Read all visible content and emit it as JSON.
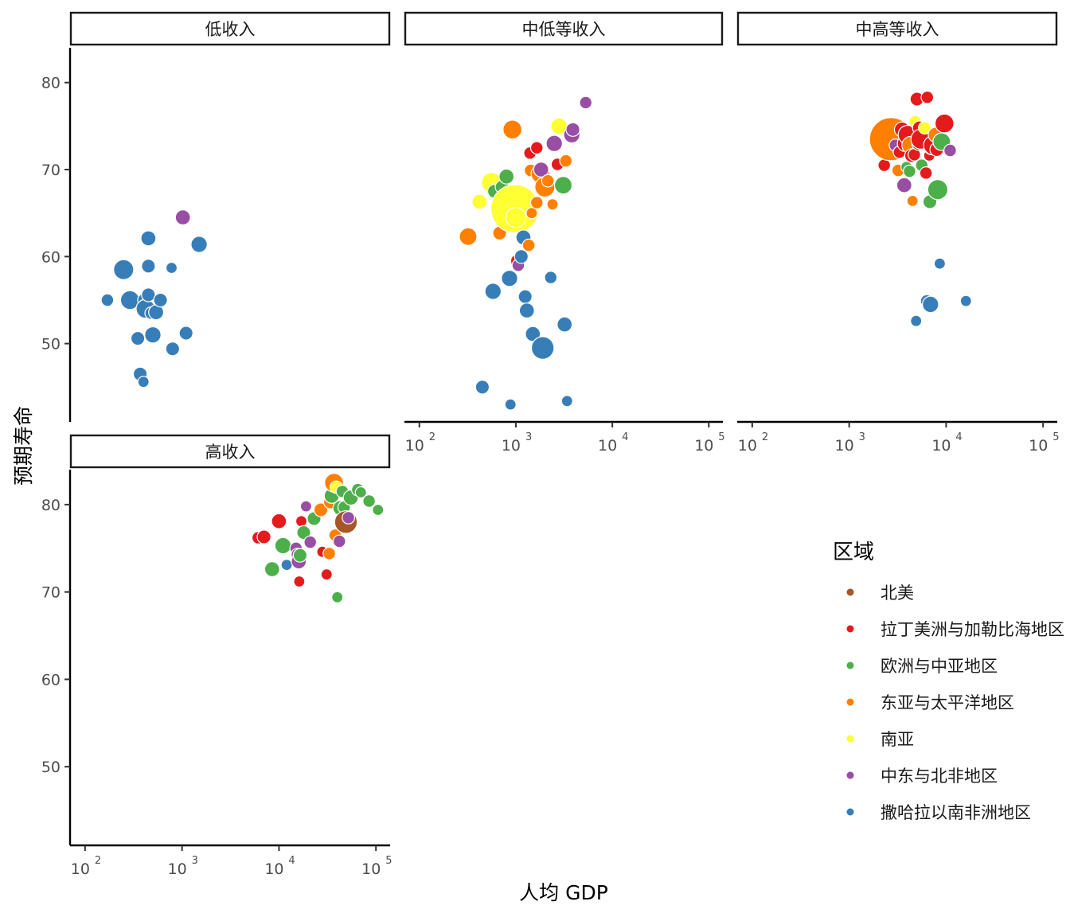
{
  "chart_data": {
    "type": "scatter",
    "subtype": "faceted-bubble",
    "xlabel": "人均 GDP",
    "ylabel": "预期寿命",
    "x_scale": "log10",
    "xlim": [
      70,
      140000
    ],
    "ylim": [
      41,
      84
    ],
    "x_ticks": [
      {
        "value": 100,
        "base": "10",
        "exp": "2"
      },
      {
        "value": 1000,
        "base": "10",
        "exp": "3"
      },
      {
        "value": 10000,
        "base": "10",
        "exp": "4"
      },
      {
        "value": 100000,
        "base": "10",
        "exp": "5"
      }
    ],
    "y_ticks": [
      50,
      60,
      70,
      80
    ],
    "grid": false,
    "legend": {
      "title": "区域",
      "position": "right",
      "entries": [
        {
          "name": "北美",
          "color": "#A65628"
        },
        {
          "name": "拉丁美洲与加勒比海地区",
          "color": "#E41A1C"
        },
        {
          "name": "欧洲与中亚地区",
          "color": "#4DAF4A"
        },
        {
          "name": "东亚与太平洋地区",
          "color": "#FF7F00"
        },
        {
          "name": "南亚",
          "color": "#FFFF33"
        },
        {
          "name": "中东与北非地区",
          "color": "#984EA3"
        },
        {
          "name": "撒哈拉以南非洲地区",
          "color": "#377EB8"
        }
      ]
    },
    "facets": [
      {
        "label": "低收入",
        "points": [
          [
            170,
            55,
            0.6,
            6
          ],
          [
            250,
            58.5,
            1.2,
            6
          ],
          [
            290,
            55,
            1.1,
            6
          ],
          [
            350,
            50.6,
            0.7,
            6
          ],
          [
            370,
            46.5,
            0.7,
            6
          ],
          [
            400,
            45.6,
            0.5,
            6
          ],
          [
            410,
            55,
            0.7,
            6
          ],
          [
            420,
            54,
            1.1,
            6
          ],
          [
            450,
            55.6,
            0.7,
            6
          ],
          [
            450,
            58.9,
            0.7,
            6
          ],
          [
            450,
            62.1,
            0.8,
            6
          ],
          [
            480,
            53.5,
            0.6,
            6
          ],
          [
            500,
            51,
            0.9,
            6
          ],
          [
            540,
            53.6,
            0.8,
            6
          ],
          [
            600,
            55,
            0.7,
            6
          ],
          [
            780,
            58.7,
            0.5,
            6
          ],
          [
            800,
            49.4,
            0.7,
            6
          ],
          [
            1020,
            64.5,
            0.8,
            5
          ],
          [
            1100,
            51.2,
            0.7,
            6
          ],
          [
            1500,
            61.4,
            0.9,
            6
          ]
        ]
      },
      {
        "label": "中低等收入",
        "points": [
          [
            320,
            62.3,
            1.0,
            3
          ],
          [
            420,
            66.3,
            0.8,
            4
          ],
          [
            450,
            45,
            0.7,
            6
          ],
          [
            560,
            68.5,
            1.2,
            4
          ],
          [
            580,
            56,
            0.9,
            6
          ],
          [
            600,
            67.5,
            0.7,
            2
          ],
          [
            680,
            62.7,
            0.7,
            3
          ],
          [
            720,
            68,
            0.7,
            2
          ],
          [
            800,
            69.2,
            0.8,
            2
          ],
          [
            860,
            57.5,
            0.9,
            6
          ],
          [
            880,
            43,
            0.5,
            6
          ],
          [
            920,
            74.6,
            1.1,
            3
          ],
          [
            980,
            65.5,
            3.4,
            4
          ],
          [
            1000,
            64.5,
            1.2,
            4
          ],
          [
            1040,
            59.5,
            0.7,
            1
          ],
          [
            1060,
            59,
            0.6,
            5
          ],
          [
            1140,
            60,
            0.7,
            6
          ],
          [
            1200,
            62.2,
            0.8,
            6
          ],
          [
            1250,
            55.4,
            0.7,
            6
          ],
          [
            1300,
            53.8,
            0.8,
            6
          ],
          [
            1360,
            61.3,
            0.6,
            3
          ],
          [
            1400,
            71.9,
            0.6,
            1
          ],
          [
            1420,
            69.9,
            0.6,
            3
          ],
          [
            1460,
            65,
            0.5,
            3
          ],
          [
            1500,
            51.1,
            0.8,
            6
          ],
          [
            1650,
            66.2,
            0.6,
            3
          ],
          [
            1650,
            72.5,
            0.6,
            1
          ],
          [
            1800,
            69.5,
            1.1,
            3
          ],
          [
            1830,
            70,
            0.8,
            5
          ],
          [
            1900,
            49.5,
            1.4,
            6
          ],
          [
            2000,
            68,
            1.2,
            3
          ],
          [
            2150,
            68.7,
            0.6,
            3
          ],
          [
            2300,
            57.6,
            0.6,
            6
          ],
          [
            2400,
            66,
            0.5,
            3
          ],
          [
            2500,
            73,
            0.9,
            5
          ],
          [
            2700,
            70.6,
            0.6,
            1
          ],
          [
            2800,
            75,
            0.9,
            4
          ],
          [
            3100,
            68.2,
            1.0,
            2
          ],
          [
            3200,
            52.2,
            0.8,
            6
          ],
          [
            3300,
            71,
            0.6,
            3
          ],
          [
            3400,
            43.4,
            0.5,
            6
          ],
          [
            3800,
            74,
            0.9,
            5
          ],
          [
            3900,
            74.6,
            0.7,
            5
          ],
          [
            5300,
            77.7,
            0.6,
            5
          ]
        ]
      },
      {
        "label": "中高等收入",
        "points": [
          [
            2300,
            70.5,
            0.6,
            1
          ],
          [
            2700,
            73.5,
            3.0,
            3
          ],
          [
            3000,
            72.8,
            0.6,
            5
          ],
          [
            3200,
            69.9,
            0.6,
            3
          ],
          [
            3300,
            72,
            0.6,
            1
          ],
          [
            3500,
            74.6,
            0.8,
            1
          ],
          [
            3700,
            68.2,
            0.8,
            5
          ],
          [
            3800,
            73,
            0.9,
            1
          ],
          [
            3900,
            70.3,
            0.5,
            2
          ],
          [
            4000,
            74,
            1.1,
            1
          ],
          [
            4200,
            69.8,
            0.6,
            2
          ],
          [
            4300,
            72.8,
            1.0,
            3
          ],
          [
            4400,
            71.6,
            0.7,
            1
          ],
          [
            4500,
            66.4,
            0.5,
            3
          ],
          [
            4700,
            71.7,
            0.6,
            1
          ],
          [
            4800,
            75.5,
            0.6,
            4
          ],
          [
            4900,
            52.6,
            0.5,
            6
          ],
          [
            5000,
            78.1,
            0.7,
            1
          ],
          [
            5200,
            73,
            0.7,
            1
          ],
          [
            5300,
            74.8,
            0.7,
            1
          ],
          [
            5500,
            73.5,
            1.2,
            1
          ],
          [
            5600,
            70.5,
            0.6,
            2
          ],
          [
            6000,
            74.8,
            0.6,
            4
          ],
          [
            6200,
            69.6,
            0.6,
            1
          ],
          [
            6300,
            54.9,
            0.6,
            6
          ],
          [
            6400,
            78.3,
            0.6,
            1
          ],
          [
            6700,
            71.6,
            0.5,
            1
          ],
          [
            6800,
            66.3,
            0.7,
            2
          ],
          [
            6900,
            54.5,
            0.9,
            6
          ],
          [
            7000,
            72.5,
            0.7,
            6
          ],
          [
            7300,
            72.8,
            1.1,
            1
          ],
          [
            7800,
            74,
            0.8,
            3
          ],
          [
            8000,
            72.3,
            0.7,
            1
          ],
          [
            8200,
            67.7,
            1.2,
            2
          ],
          [
            8600,
            59.2,
            0.5,
            6
          ],
          [
            9000,
            73.2,
            1.0,
            2
          ],
          [
            9600,
            75.3,
            1.1,
            1
          ],
          [
            11000,
            72.2,
            0.6,
            5
          ],
          [
            16000,
            54.9,
            0.5,
            6
          ]
        ]
      },
      {
        "label": "高收入",
        "points": [
          [
            6100,
            76.2,
            0.6,
            1
          ],
          [
            7000,
            76.3,
            0.7,
            1
          ],
          [
            8500,
            72.6,
            0.8,
            2
          ],
          [
            10000,
            78.1,
            0.8,
            1
          ],
          [
            11000,
            75.3,
            0.9,
            2
          ],
          [
            12000,
            73.1,
            0.5,
            6
          ],
          [
            15000,
            75,
            0.6,
            5
          ],
          [
            15500,
            74.3,
            0.6,
            5
          ],
          [
            16000,
            73.5,
            0.8,
            5
          ],
          [
            16200,
            71.2,
            0.5,
            1
          ],
          [
            16500,
            74.2,
            0.7,
            2
          ],
          [
            17000,
            78.1,
            0.5,
            1
          ],
          [
            18000,
            76.8,
            0.7,
            2
          ],
          [
            19000,
            79.8,
            0.5,
            5
          ],
          [
            21000,
            75.7,
            0.6,
            5
          ],
          [
            23000,
            78.4,
            0.7,
            2
          ],
          [
            27000,
            79.4,
            0.7,
            3
          ],
          [
            28000,
            74.6,
            0.5,
            1
          ],
          [
            31000,
            72,
            0.5,
            1
          ],
          [
            33000,
            74.4,
            0.6,
            3
          ],
          [
            34000,
            80.3,
            0.7,
            3
          ],
          [
            35000,
            81,
            0.8,
            2
          ],
          [
            37000,
            82.5,
            1.1,
            3
          ],
          [
            38000,
            76.5,
            0.6,
            3
          ],
          [
            39000,
            82,
            0.6,
            4
          ],
          [
            40000,
            69.4,
            0.5,
            2
          ],
          [
            42000,
            75.8,
            0.6,
            5
          ],
          [
            43000,
            79.6,
            0.8,
            2
          ],
          [
            45000,
            81.5,
            0.6,
            2
          ],
          [
            47000,
            79.7,
            0.6,
            2
          ],
          [
            49000,
            78,
            1.4,
            0
          ],
          [
            52000,
            78.5,
            0.6,
            5
          ],
          [
            55000,
            80.8,
            0.8,
            2
          ],
          [
            65000,
            81.7,
            0.6,
            2
          ],
          [
            70000,
            81.4,
            0.5,
            2
          ],
          [
            85000,
            80.4,
            0.6,
            2
          ],
          [
            105000,
            79.4,
            0.5,
            2
          ]
        ]
      }
    ]
  }
}
